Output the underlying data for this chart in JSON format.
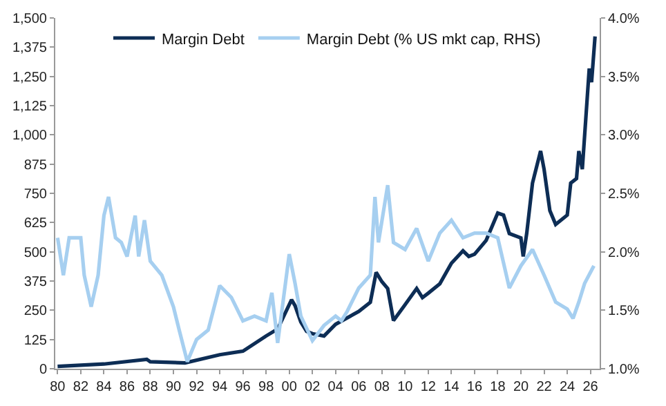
{
  "chart_data": {
    "type": "line",
    "xlim": [
      1979.8,
      2026.8
    ],
    "xticks": [
      {
        "value": 1980,
        "label": "80"
      },
      {
        "value": 1982,
        "label": "82"
      },
      {
        "value": 1984,
        "label": "84"
      },
      {
        "value": 1986,
        "label": "86"
      },
      {
        "value": 1988,
        "label": "88"
      },
      {
        "value": 1990,
        "label": "90"
      },
      {
        "value": 1992,
        "label": "92"
      },
      {
        "value": 1994,
        "label": "94"
      },
      {
        "value": 1996,
        "label": "96"
      },
      {
        "value": 1998,
        "label": "98"
      },
      {
        "value": 2000,
        "label": "00"
      },
      {
        "value": 2002,
        "label": "02"
      },
      {
        "value": 2004,
        "label": "04"
      },
      {
        "value": 2006,
        "label": "06"
      },
      {
        "value": 2008,
        "label": "08"
      },
      {
        "value": 2010,
        "label": "10"
      },
      {
        "value": 2012,
        "label": "12"
      },
      {
        "value": 2014,
        "label": "14"
      },
      {
        "value": 2016,
        "label": "16"
      },
      {
        "value": 2018,
        "label": "18"
      },
      {
        "value": 2020,
        "label": "20"
      },
      {
        "value": 2022,
        "label": "22"
      },
      {
        "value": 2024,
        "label": "24"
      },
      {
        "value": 2026,
        "label": "26"
      }
    ],
    "ylim": [
      0,
      1500
    ],
    "yticks": [
      {
        "value": 0,
        "label": "0"
      },
      {
        "value": 125,
        "label": "125"
      },
      {
        "value": 250,
        "label": "250"
      },
      {
        "value": 375,
        "label": "375"
      },
      {
        "value": 500,
        "label": "500"
      },
      {
        "value": 625,
        "label": "625"
      },
      {
        "value": 750,
        "label": "750"
      },
      {
        "value": 875,
        "label": "875"
      },
      {
        "value": 1000,
        "label": "1,000"
      },
      {
        "value": 1125,
        "label": "1,125"
      },
      {
        "value": 1250,
        "label": "1,250"
      },
      {
        "value": 1375,
        "label": "1,375"
      },
      {
        "value": 1500,
        "label": "1,500"
      }
    ],
    "y2lim": [
      1.0,
      4.0
    ],
    "y2ticks": [
      {
        "value": 1.0,
        "label": "1.0%"
      },
      {
        "value": 1.5,
        "label": "1.5%"
      },
      {
        "value": 2.0,
        "label": "2.0%"
      },
      {
        "value": 2.5,
        "label": "2.5%"
      },
      {
        "value": 3.0,
        "label": "3.0%"
      },
      {
        "value": 3.5,
        "label": "3.5%"
      },
      {
        "value": 4.0,
        "label": "4.0%"
      }
    ],
    "legend": "top",
    "marker": "none",
    "line_style": "solid",
    "series": [
      {
        "name": "Margin Debt (% US mkt cap, RHS)",
        "color": "#a6cff0",
        "axis": "y2",
        "x": [
          1980,
          1980.5,
          1981,
          1982,
          1982.3,
          1982.9,
          1983.5,
          1984,
          1984.4,
          1985,
          1985.5,
          1986,
          1986.7,
          1987,
          1987.5,
          1988,
          1989,
          1990,
          1990.5,
          1991.2,
          1992,
          1993,
          1994,
          1995,
          1996,
          1997,
          1998,
          1998.5,
          1999,
          2000,
          2000.5,
          2001,
          2002,
          2003,
          2004,
          2004.5,
          2005,
          2006,
          2007,
          2007.4,
          2007.7,
          2008.5,
          2009,
          2010,
          2011,
          2012,
          2013,
          2014,
          2015,
          2016,
          2017,
          2018,
          2019,
          2020,
          2021,
          2022,
          2023,
          2024,
          2024.5,
          2025,
          2025.5,
          2026.3
        ],
        "values": [
          2.12,
          1.8,
          2.12,
          2.12,
          1.8,
          1.53,
          1.8,
          2.31,
          2.47,
          2.12,
          2.08,
          1.96,
          2.31,
          1.96,
          2.27,
          1.92,
          1.8,
          1.53,
          1.33,
          1.06,
          1.25,
          1.33,
          1.71,
          1.61,
          1.41,
          1.45,
          1.41,
          1.65,
          1.22,
          1.98,
          1.73,
          1.45,
          1.24,
          1.37,
          1.45,
          1.41,
          1.49,
          1.69,
          1.8,
          2.47,
          2.08,
          2.57,
          2.08,
          2.02,
          2.2,
          1.92,
          2.16,
          2.27,
          2.12,
          2.16,
          2.16,
          2.12,
          1.69,
          1.88,
          2.02,
          1.8,
          1.57,
          1.51,
          1.43,
          1.57,
          1.73,
          1.88
        ]
      },
      {
        "name": "Margin Debt",
        "color": "#0d2d55",
        "x": [
          1980,
          1984,
          1987.7,
          1988,
          1991,
          1994,
          1996,
          1998,
          1999,
          2000.2,
          2000.5,
          2001,
          2001.5,
          2002,
          2003,
          2004,
          2006,
          2007,
          2007.5,
          2008,
          2008.5,
          2009,
          2010,
          2011,
          2011.5,
          2012,
          2013,
          2014,
          2015,
          2015.5,
          2016,
          2017,
          2018,
          2018.5,
          2019,
          2020,
          2020.2,
          2020.5,
          2021,
          2021.7,
          2022,
          2022.5,
          2023,
          2024,
          2024.3,
          2024.8,
          2025,
          2025.3,
          2025.6,
          2025.9,
          2026.1,
          2026.4
        ],
        "values": [
          10,
          20,
          40,
          30,
          25,
          60,
          75,
          140,
          170,
          295,
          270,
          200,
          160,
          150,
          140,
          190,
          245,
          284,
          412,
          372,
          343,
          206,
          274,
          343,
          304,
          323,
          363,
          451,
          504,
          480,
          490,
          549,
          666,
          657,
          578,
          559,
          480,
          578,
          794,
          931,
          853,
          676,
          617,
          657,
          794,
          813,
          931,
          853,
          1068,
          1284,
          1225,
          1421
        ]
      }
    ]
  }
}
